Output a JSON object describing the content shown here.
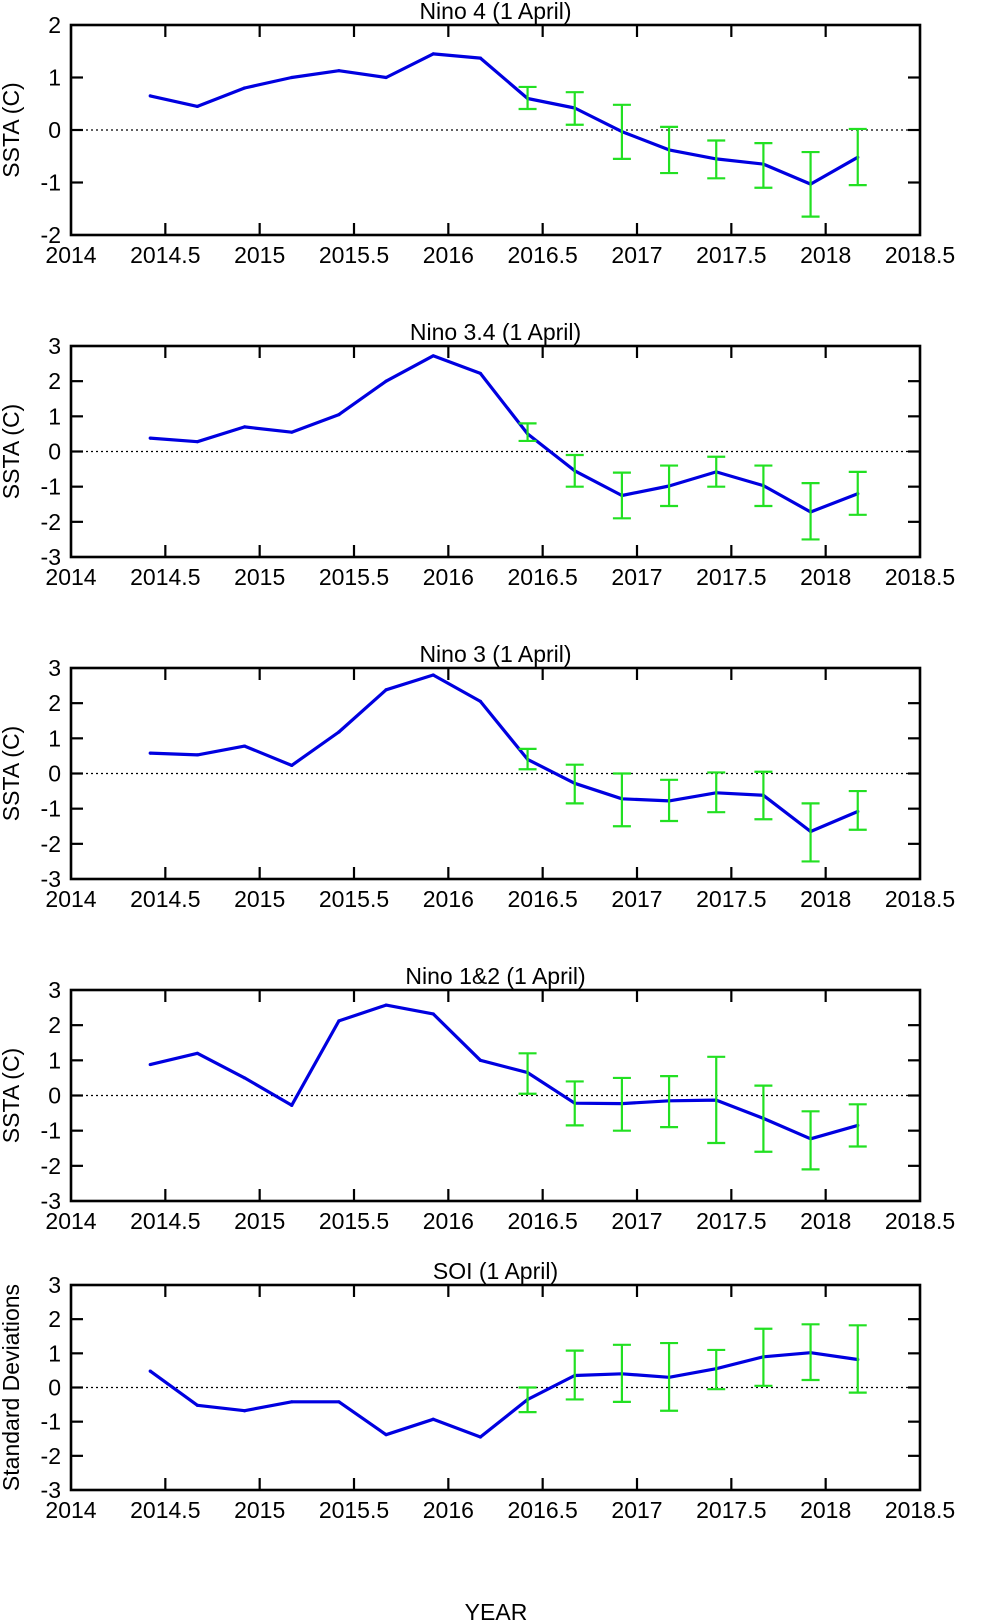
{
  "xlabel": "YEAR",
  "chart_data": [
    {
      "type": "line",
      "title": "Nino 4 (1 April)",
      "ylabel": "SSTA (C)",
      "xlabel": "",
      "xlim": [
        2014,
        2018.5
      ],
      "ylim": [
        -2,
        2
      ],
      "xticks": [
        "2014",
        "2014.5",
        "2015",
        "2015.5",
        "2016",
        "2016.5",
        "2017",
        "2017.5",
        "2018",
        "2018.5"
      ],
      "yticks": [
        "-2",
        "-1",
        "0",
        "1",
        "2"
      ],
      "zero_line": true,
      "series": [
        {
          "color": "#0000e0",
          "x": [
            2014.42,
            2014.67,
            2014.92,
            2015.17,
            2015.42,
            2015.67,
            2015.92,
            2016.17,
            2016.42,
            2016.67,
            2016.92,
            2017.17,
            2017.42,
            2017.67,
            2017.92,
            2018.17
          ],
          "y": [
            0.65,
            0.45,
            0.8,
            1.0,
            1.13,
            1.0,
            1.45,
            1.37,
            0.6,
            0.42,
            -0.03,
            -0.38,
            -0.55,
            -0.65,
            -1.03,
            -0.52
          ]
        }
      ],
      "errorbars": {
        "color": "#22e022",
        "x": [
          2016.42,
          2016.67,
          2016.92,
          2017.17,
          2017.42,
          2017.67,
          2017.92,
          2018.17
        ],
        "low": [
          0.4,
          0.1,
          -0.55,
          -0.82,
          -0.92,
          -1.1,
          -1.65,
          -1.05
        ],
        "high": [
          0.82,
          0.72,
          0.48,
          0.06,
          -0.2,
          -0.25,
          -0.42,
          0.02
        ]
      }
    },
    {
      "type": "line",
      "title": "Nino 3.4 (1 April)",
      "ylabel": "SSTA (C)",
      "xlabel": "",
      "xlim": [
        2014,
        2018.5
      ],
      "ylim": [
        -3,
        3
      ],
      "xticks": [
        "2014",
        "2014.5",
        "2015",
        "2015.5",
        "2016",
        "2016.5",
        "2017",
        "2017.5",
        "2018",
        "2018.5"
      ],
      "yticks": [
        "-3",
        "-2",
        "-1",
        "0",
        "1",
        "2",
        "3"
      ],
      "zero_line": true,
      "series": [
        {
          "color": "#0000e0",
          "x": [
            2014.42,
            2014.67,
            2014.92,
            2015.17,
            2015.42,
            2015.67,
            2015.92,
            2016.17,
            2016.42,
            2016.67,
            2016.92,
            2017.17,
            2017.42,
            2017.67,
            2017.92,
            2018.17
          ],
          "y": [
            0.38,
            0.28,
            0.7,
            0.55,
            1.05,
            2.0,
            2.72,
            2.22,
            0.5,
            -0.55,
            -1.25,
            -0.98,
            -0.58,
            -0.97,
            -1.72,
            -1.2
          ]
        }
      ],
      "errorbars": {
        "color": "#22e022",
        "x": [
          2016.42,
          2016.67,
          2016.92,
          2017.17,
          2017.42,
          2017.67,
          2017.92,
          2018.17
        ],
        "low": [
          0.3,
          -1.0,
          -1.9,
          -1.55,
          -1.0,
          -1.55,
          -2.5,
          -1.8
        ],
        "high": [
          0.8,
          -0.1,
          -0.6,
          -0.4,
          -0.15,
          -0.4,
          -0.9,
          -0.58
        ]
      }
    },
    {
      "type": "line",
      "title": "Nino 3 (1 April)",
      "ylabel": "SSTA (C)",
      "xlabel": "",
      "xlim": [
        2014,
        2018.5
      ],
      "ylim": [
        -3,
        3
      ],
      "xticks": [
        "2014",
        "2014.5",
        "2015",
        "2015.5",
        "2016",
        "2016.5",
        "2017",
        "2017.5",
        "2018",
        "2018.5"
      ],
      "yticks": [
        "-3",
        "-2",
        "-1",
        "0",
        "1",
        "2",
        "3"
      ],
      "zero_line": true,
      "series": [
        {
          "color": "#0000e0",
          "x": [
            2014.42,
            2014.67,
            2014.92,
            2015.17,
            2015.42,
            2015.67,
            2015.92,
            2016.17,
            2016.42,
            2016.67,
            2016.92,
            2017.17,
            2017.42,
            2017.67,
            2017.92,
            2018.17
          ],
          "y": [
            0.58,
            0.53,
            0.78,
            0.23,
            1.18,
            2.38,
            2.8,
            2.05,
            0.4,
            -0.28,
            -0.72,
            -0.78,
            -0.55,
            -0.62,
            -1.65,
            -1.08
          ]
        }
      ],
      "errorbars": {
        "color": "#22e022",
        "x": [
          2016.42,
          2016.67,
          2016.92,
          2017.17,
          2017.42,
          2017.67,
          2017.92,
          2018.17
        ],
        "low": [
          0.12,
          -0.85,
          -1.5,
          -1.35,
          -1.1,
          -1.3,
          -2.5,
          -1.6
        ],
        "high": [
          0.7,
          0.25,
          0.0,
          -0.18,
          0.03,
          0.05,
          -0.85,
          -0.5
        ]
      }
    },
    {
      "type": "line",
      "title": "Nino 1&2 (1 April)",
      "ylabel": "SSTA (C)",
      "xlabel": "",
      "xlim": [
        2014,
        2018.5
      ],
      "ylim": [
        -3,
        3
      ],
      "xticks": [
        "2014",
        "2014.5",
        "2015",
        "2015.5",
        "2016",
        "2016.5",
        "2017",
        "2017.5",
        "2018",
        "2018.5"
      ],
      "yticks": [
        "-3",
        "-2",
        "-1",
        "0",
        "1",
        "2",
        "3"
      ],
      "zero_line": true,
      "series": [
        {
          "color": "#0000e0",
          "x": [
            2014.42,
            2014.67,
            2014.92,
            2015.17,
            2015.42,
            2015.67,
            2015.92,
            2016.17,
            2016.42,
            2016.67,
            2016.92,
            2017.17,
            2017.42,
            2017.67,
            2017.92,
            2018.17
          ],
          "y": [
            0.88,
            1.2,
            0.5,
            -0.28,
            2.12,
            2.57,
            2.32,
            1.0,
            0.65,
            -0.22,
            -0.23,
            -0.15,
            -0.13,
            -0.65,
            -1.23,
            -0.85
          ]
        }
      ],
      "errorbars": {
        "color": "#22e022",
        "x": [
          2016.42,
          2016.67,
          2016.92,
          2017.17,
          2017.42,
          2017.67,
          2017.92,
          2018.17
        ],
        "low": [
          0.05,
          -0.85,
          -1.0,
          -0.9,
          -1.35,
          -1.6,
          -2.1,
          -1.45
        ],
        "high": [
          1.2,
          0.4,
          0.5,
          0.55,
          1.1,
          0.28,
          -0.45,
          -0.25
        ]
      }
    },
    {
      "type": "line",
      "title": "SOI (1 April)",
      "ylabel": "Standard Deviations",
      "xlabel": "YEAR",
      "xlim": [
        2014,
        2018.5
      ],
      "ylim": [
        -3,
        3
      ],
      "xticks": [
        "2014",
        "2014.5",
        "2015",
        "2015.5",
        "2016",
        "2016.5",
        "2017",
        "2017.5",
        "2018",
        "2018.5"
      ],
      "yticks": [
        "-3",
        "-2",
        "-1",
        "0",
        "1",
        "2",
        "3"
      ],
      "zero_line": true,
      "series": [
        {
          "color": "#0000e0",
          "x": [
            2014.42,
            2014.67,
            2014.92,
            2015.17,
            2015.42,
            2015.67,
            2015.92,
            2016.17,
            2016.42,
            2016.67,
            2016.92,
            2017.17,
            2017.42,
            2017.67,
            2017.92,
            2018.17
          ],
          "y": [
            0.48,
            -0.52,
            -0.68,
            -0.42,
            -0.42,
            -1.38,
            -0.93,
            -1.45,
            -0.35,
            0.35,
            0.4,
            0.3,
            0.55,
            0.9,
            1.02,
            0.82
          ]
        }
      ],
      "errorbars": {
        "color": "#22e022",
        "x": [
          2016.42,
          2016.67,
          2016.92,
          2017.17,
          2017.42,
          2017.67,
          2017.92,
          2018.17
        ],
        "low": [
          -0.72,
          -0.35,
          -0.42,
          -0.68,
          -0.05,
          0.05,
          0.22,
          -0.15
        ],
        "high": [
          0.0,
          1.08,
          1.25,
          1.3,
          1.1,
          1.72,
          1.85,
          1.82
        ]
      }
    }
  ]
}
